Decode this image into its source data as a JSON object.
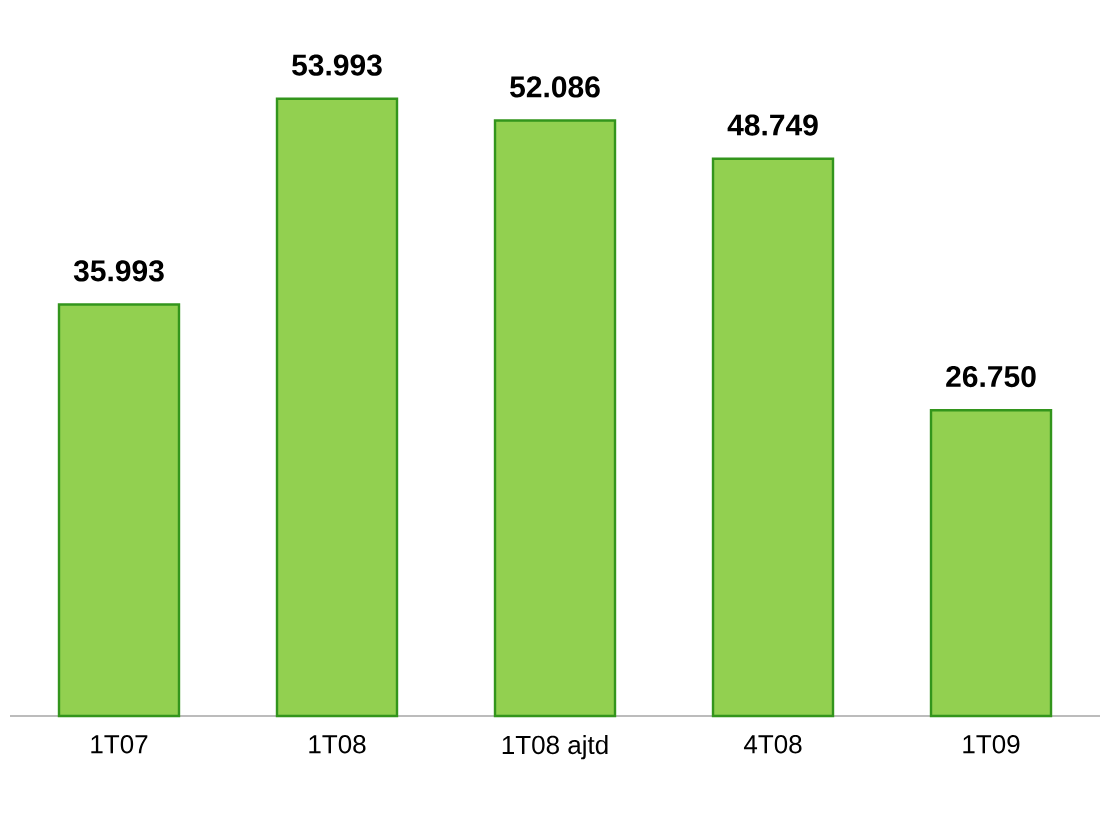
{
  "chart_data": {
    "type": "bar",
    "categories": [
      "1T07",
      "1T08",
      "1T08 ajtd",
      "4T08",
      "1T09"
    ],
    "values": [
      35993,
      53993,
      52086,
      48749,
      26750
    ],
    "value_labels": [
      "35.993",
      "53.993",
      "52.086",
      "48.749",
      "26.750"
    ],
    "color": "#92d050"
  }
}
